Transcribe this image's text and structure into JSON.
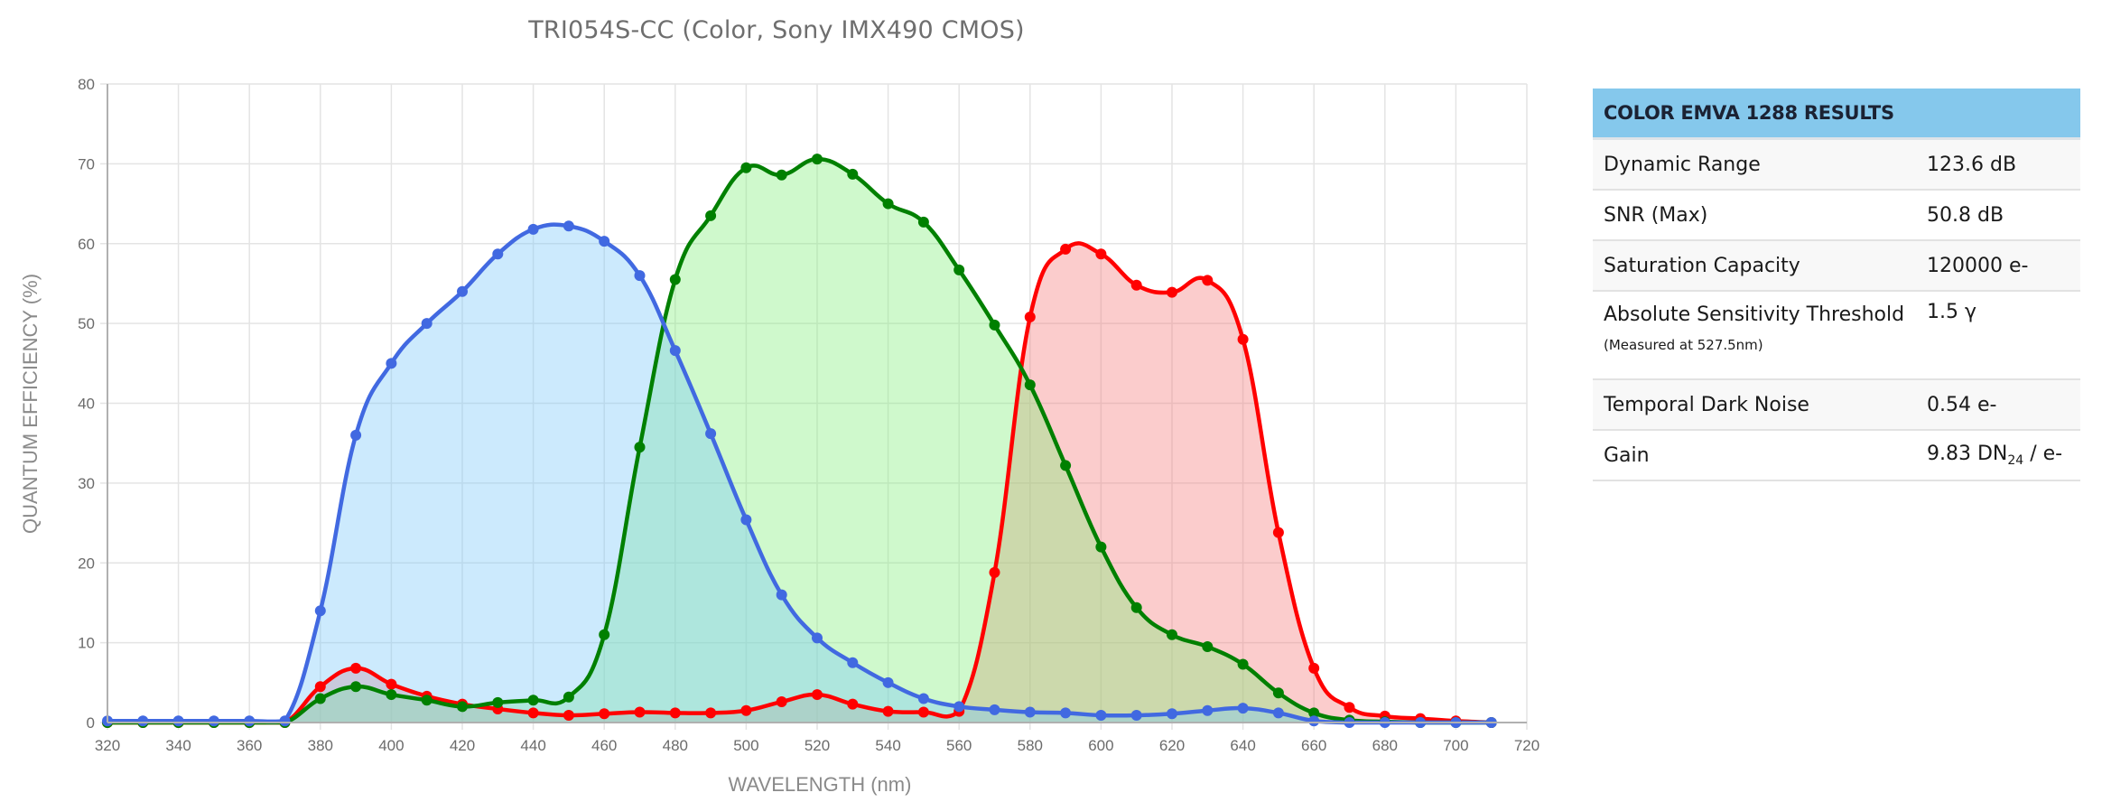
{
  "chart_data": {
    "type": "area",
    "title": "TRI054S-CC (Color, Sony IMX490 CMOS)",
    "xlabel": "WAVELENGTH (nm)",
    "ylabel": "QUANTUM EFFICIENCY (%)",
    "xlim": [
      320,
      720
    ],
    "ylim": [
      0,
      80
    ],
    "x_ticks": [
      320,
      340,
      360,
      380,
      400,
      420,
      440,
      460,
      480,
      500,
      520,
      540,
      560,
      580,
      600,
      620,
      640,
      660,
      680,
      700,
      720
    ],
    "y_ticks": [
      0,
      10,
      20,
      30,
      40,
      50,
      60,
      70,
      80
    ],
    "grid": true,
    "legend": "none",
    "x": [
      320,
      330,
      340,
      350,
      360,
      370,
      380,
      390,
      400,
      410,
      420,
      430,
      440,
      450,
      460,
      470,
      480,
      490,
      500,
      510,
      520,
      530,
      540,
      550,
      560,
      570,
      580,
      590,
      600,
      610,
      620,
      630,
      640,
      650,
      660,
      670,
      680,
      690,
      700,
      710
    ],
    "series": [
      {
        "name": "Red",
        "line_color": "#ff0000",
        "fill_color": "rgba(245,120,120,0.38)",
        "values": [
          0,
          0,
          0,
          0,
          0,
          0,
          4.5,
          6.8,
          4.8,
          3.3,
          2.3,
          1.7,
          1.2,
          0.9,
          1.1,
          1.3,
          1.2,
          1.2,
          1.5,
          2.6,
          3.5,
          2.3,
          1.4,
          1.3,
          1.4,
          18.8,
          50.8,
          59.3,
          58.7,
          54.8,
          53.9,
          55.4,
          48.0,
          23.8,
          6.8,
          1.9,
          0.8,
          0.5,
          0.2,
          0
        ]
      },
      {
        "name": "Green",
        "line_color": "#008000",
        "fill_color": "rgba(130,240,120,0.38)",
        "values": [
          0,
          0,
          0,
          0,
          0,
          0,
          3.0,
          4.5,
          3.5,
          2.8,
          2.0,
          2.5,
          2.8,
          3.2,
          11.0,
          34.5,
          55.5,
          63.5,
          69.5,
          68.6,
          70.6,
          68.7,
          65.0,
          62.7,
          56.7,
          49.8,
          42.3,
          32.2,
          22.0,
          14.4,
          11.0,
          9.5,
          7.3,
          3.7,
          1.2,
          0.3,
          0.1,
          0,
          0,
          0
        ]
      },
      {
        "name": "Blue",
        "line_color": "#4169e1",
        "fill_color": "rgba(120,200,250,0.38)",
        "values": [
          0.2,
          0.2,
          0.2,
          0.2,
          0.2,
          0.2,
          14.0,
          36.0,
          45.0,
          50.0,
          54.0,
          58.7,
          61.8,
          62.2,
          60.3,
          56.0,
          46.6,
          36.2,
          25.4,
          16.0,
          10.6,
          7.5,
          5.0,
          3.0,
          2.0,
          1.6,
          1.3,
          1.2,
          0.9,
          0.9,
          1.1,
          1.5,
          1.8,
          1.2,
          0.2,
          0,
          0,
          0,
          0,
          0
        ]
      }
    ]
  },
  "results_table": {
    "header": "COLOR EMVA 1288 RESULTS",
    "rows": [
      {
        "label": "Dynamic Range",
        "value": "123.6 dB"
      },
      {
        "label": "SNR (Max)",
        "value": "50.8 dB"
      },
      {
        "label": "Saturation Capacity",
        "value": "120000 e-"
      },
      {
        "label": "Absolute Sensitivity Threshold",
        "label_note": "(Measured at 527.5nm)",
        "value": "1.5 γ"
      },
      {
        "label": "Temporal Dark Noise",
        "value": "0.54 e-"
      },
      {
        "label": "Gain",
        "value_main": "9.83 DN",
        "value_sub": "24",
        "value_tail": " / e-"
      }
    ]
  },
  "colors": {
    "table_header_bg": "#85c8ec",
    "grid": "#e4e4e4",
    "axis": "#b0b0b0"
  }
}
